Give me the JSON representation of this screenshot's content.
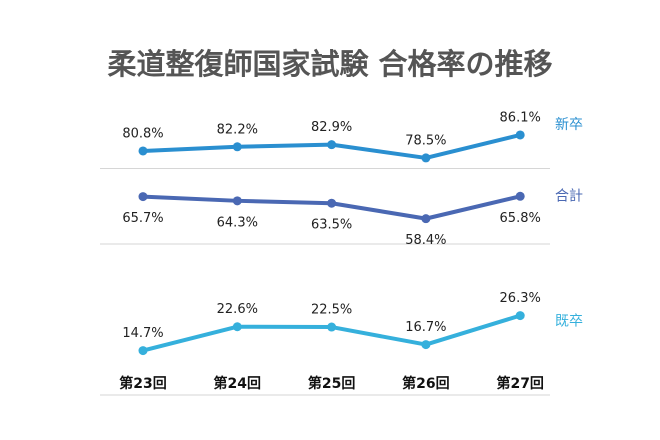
{
  "chart_data": {
    "type": "line",
    "title": "柔道整復師国家試験 合格率の推移",
    "categories": [
      "第23回",
      "第24回",
      "第25回",
      "第26回",
      "第27回"
    ],
    "series": [
      {
        "name": "新卒",
        "color": "#2a8fd0",
        "values": [
          80.8,
          82.2,
          82.9,
          78.5,
          86.1
        ],
        "value_labels": [
          "80.8%",
          "82.2%",
          "82.9%",
          "78.5%",
          "86.1%"
        ]
      },
      {
        "name": "合計",
        "color": "#4a68b3",
        "values": [
          65.7,
          64.3,
          63.5,
          58.4,
          65.8
        ],
        "value_labels": [
          "65.7%",
          "64.3%",
          "63.5%",
          "58.4%",
          "65.8%"
        ]
      },
      {
        "name": "既卒",
        "color": "#35b0dc",
        "values": [
          14.7,
          22.6,
          22.5,
          16.7,
          26.3
        ],
        "value_labels": [
          "14.7%",
          "22.6%",
          "22.5%",
          "16.7%",
          "26.3%"
        ]
      }
    ],
    "ylim": [
      0,
      100
    ],
    "yticks": [
      0,
      50,
      75
    ],
    "grid": true
  }
}
